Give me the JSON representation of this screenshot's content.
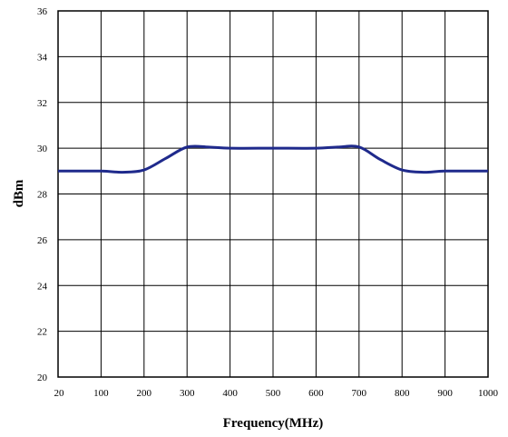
{
  "chart_data": {
    "type": "line",
    "title": "",
    "xlabel": "Frequency(MHz)",
    "ylabel": "dBm",
    "xlim": [
      20,
      1000
    ],
    "ylim": [
      20,
      36
    ],
    "x_ticks": [
      "20",
      "100",
      "200",
      "300",
      "400",
      "500",
      "600",
      "700",
      "800",
      "900",
      "1000"
    ],
    "y_ticks": [
      "20",
      "22",
      "24",
      "26",
      "28",
      "30",
      "32",
      "34",
      "36"
    ],
    "grid": true,
    "legend": "none",
    "line_color": "#1f2a8c",
    "series": [
      {
        "x": [
          20,
          100,
          150,
          200,
          250,
          300,
          350,
          400,
          500,
          600,
          650,
          700,
          750,
          800,
          850,
          900,
          1000
        ],
        "y": [
          29,
          29,
          28.95,
          29.05,
          29.55,
          30.05,
          30.05,
          30,
          30,
          30,
          30.05,
          30.05,
          29.5,
          29.05,
          28.95,
          29,
          29
        ]
      }
    ]
  }
}
